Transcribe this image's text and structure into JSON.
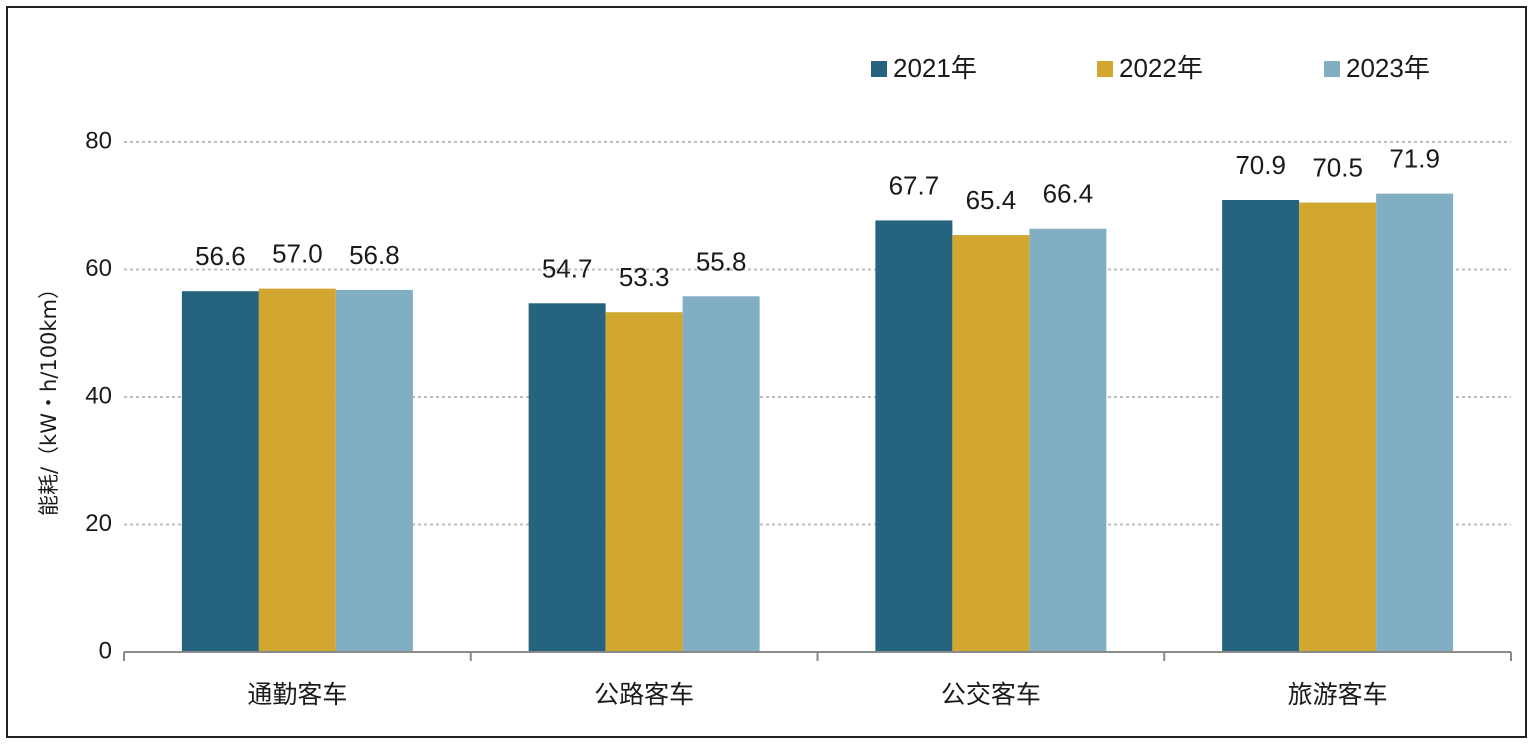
{
  "chart_data": {
    "type": "bar",
    "title": "",
    "xlabel": "",
    "ylabel": "能耗/（kW・h/100km）",
    "categories": [
      "通勤客车",
      "公路客车",
      "公交客车",
      "旅游客车"
    ],
    "series": [
      {
        "name": "2021年",
        "color": "#26637f",
        "values": [
          56.6,
          54.7,
          67.7,
          70.9
        ],
        "labels": [
          "56.6",
          "54.7",
          "67.7",
          "70.9"
        ]
      },
      {
        "name": "2022年",
        "color": "#d1a730",
        "values": [
          57.0,
          53.3,
          65.4,
          70.5
        ],
        "labels": [
          "57.0",
          "53.3",
          "65.4",
          "70.5"
        ]
      },
      {
        "name": "2023年",
        "color": "#81aec3",
        "values": [
          56.8,
          55.8,
          66.4,
          71.9
        ],
        "labels": [
          "56.8",
          "55.8",
          "66.4",
          "71.9"
        ]
      }
    ],
    "ylim": [
      0,
      80
    ],
    "yticks": [
      0,
      20,
      40,
      60,
      80
    ],
    "ytick_labels": [
      "0",
      "20",
      "40",
      "60",
      "80"
    ],
    "grid": true,
    "legend_position": "top-right"
  }
}
